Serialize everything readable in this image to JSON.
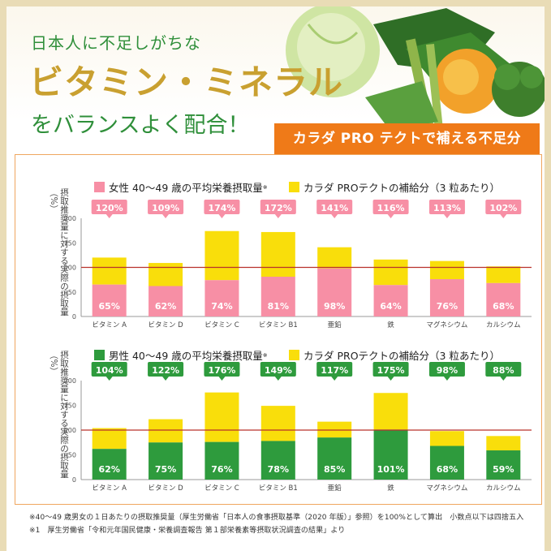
{
  "header": {
    "line1": "日本人に不足しがちな",
    "line2": "ビタミン・ミネラル",
    "line3": "をバランスよく配合！"
  },
  "banner": "カラダ PRO テクトで補える不足分",
  "y_axis_label": "摂取推奨量に対する実際の摂取量（%）",
  "colors": {
    "female": "#f78fa5",
    "male": "#2e9b3d",
    "supplement": "#f9de0b",
    "reference_line": "#b9312b",
    "orange": "#ef7a18"
  },
  "chart_data": [
    {
      "type": "bar",
      "stacked": true,
      "categories": [
        "ビタミン A",
        "ビタミン D",
        "ビタミン C",
        "ビタミン B1",
        "亜鉛",
        "鉄",
        "マグネシウム",
        "カルシウム"
      ],
      "series": [
        {
          "name": "女性 40～49 歳の平均栄養摂取量",
          "values": [
            65,
            62,
            74,
            81,
            98,
            64,
            76,
            68
          ]
        },
        {
          "name": "カラダ PROテクトの補給分（3 粒あたり）",
          "values": [
            55,
            47,
            100,
            91,
            43,
            52,
            37,
            34
          ]
        }
      ],
      "totals_labels": [
        "120%",
        "109%",
        "174%",
        "172%",
        "141%",
        "116%",
        "113%",
        "102%"
      ],
      "base_labels": [
        "65%",
        "62%",
        "74%",
        "81%",
        "98%",
        "64%",
        "76%",
        "68%"
      ],
      "y_ticks": [
        "0",
        "50",
        "100",
        "150",
        "200"
      ],
      "ylim": [
        0,
        200
      ],
      "reference_line": 100,
      "legend_note": "※"
    },
    {
      "type": "bar",
      "stacked": true,
      "categories": [
        "ビタミン A",
        "ビタミン D",
        "ビタミン C",
        "ビタミン B1",
        "亜鉛",
        "鉄",
        "マグネシウム",
        "カルシウム"
      ],
      "series": [
        {
          "name": "男性 40～49 歳の平均栄養摂取量",
          "values": [
            62,
            75,
            76,
            78,
            85,
            101,
            68,
            59
          ]
        },
        {
          "name": "カラダ PROテクトの補給分（3 粒あたり）",
          "values": [
            42,
            47,
            100,
            71,
            32,
            74,
            30,
            29
          ]
        }
      ],
      "totals_labels": [
        "104%",
        "122%",
        "176%",
        "149%",
        "117%",
        "175%",
        "98%",
        "88%"
      ],
      "base_labels": [
        "62%",
        "75%",
        "76%",
        "78%",
        "85%",
        "101%",
        "68%",
        "59%"
      ],
      "y_ticks": [
        "0",
        "50",
        "100",
        "150",
        "200"
      ],
      "ylim": [
        0,
        200
      ],
      "reference_line": 100,
      "legend_note": "※"
    }
  ],
  "footnotes": [
    "※40～49 歳男女の１日あたりの摂取推奨量（厚生労働省「日本人の食事摂取基準（2020 年版）」参照）を100%として算出　小数点以下は四捨五入",
    "※1　厚生労働省「令和元年国民健康・栄養調査報告 第１部栄養素等摂取状況調査の結果」より"
  ]
}
